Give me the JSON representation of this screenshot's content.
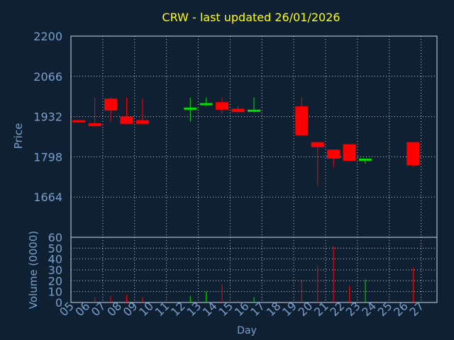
{
  "colors": {
    "background": "#102033",
    "title": "#ffff00",
    "axis_text": "#7aa0cc",
    "frame": "#cfd8e8",
    "grid": "#c8d0dc",
    "up": "#00e000",
    "down": "#ff0000"
  },
  "chart_data": [
    {
      "type": "candlestick",
      "title": "CRW - last updated 26/01/2026",
      "ylabel": "Price",
      "ylim": [
        1530,
        2200
      ],
      "yticks": [
        2200,
        2066,
        1932,
        1798,
        1664
      ],
      "grid": true,
      "candles": [
        {
          "day": "05",
          "open": 1920,
          "close": 1917,
          "high": 1920,
          "low": 1917
        },
        {
          "day": "06",
          "open": 1910,
          "close": 1900,
          "high": 1995,
          "low": 1898
        },
        {
          "day": "07",
          "open": 1992,
          "close": 1952,
          "high": 1996,
          "low": 1915
        },
        {
          "day": "08",
          "open": 1932,
          "close": 1908,
          "high": 1995,
          "low": 1908
        },
        {
          "day": "09",
          "open": 1920,
          "close": 1908,
          "high": 1992,
          "low": 1906
        },
        {
          "day": "12",
          "open": 1957,
          "close": 1962,
          "high": 1995,
          "low": 1915
        },
        {
          "day": "13",
          "open": 1972,
          "close": 1977,
          "high": 1995,
          "low": 1967
        },
        {
          "day": "14",
          "open": 1980,
          "close": 1955,
          "high": 1995,
          "low": 1942
        },
        {
          "day": "15",
          "open": 1958,
          "close": 1947,
          "high": 1968,
          "low": 1946
        },
        {
          "day": "16",
          "open": 1950,
          "close": 1955,
          "high": 1995,
          "low": 1946
        },
        {
          "day": "19",
          "open": 1966,
          "close": 1870,
          "high": 1995,
          "low": 1866
        },
        {
          "day": "20",
          "open": 1847,
          "close": 1830,
          "high": 1847,
          "low": 1700
        },
        {
          "day": "21",
          "open": 1822,
          "close": 1792,
          "high": 1822,
          "low": 1762
        },
        {
          "day": "22",
          "open": 1840,
          "close": 1785,
          "high": 1840,
          "low": 1783
        },
        {
          "day": "23",
          "open": 1787,
          "close": 1792,
          "high": 1792,
          "low": 1775
        },
        {
          "day": "26",
          "open": 1847,
          "close": 1770,
          "high": 1847,
          "low": 1765
        }
      ]
    },
    {
      "type": "bar",
      "ylabel": "Volume (0000)",
      "xlabel": "Day",
      "ylim": [
        0,
        60
      ],
      "yticks": [
        60,
        50,
        40,
        30,
        20,
        10,
        0
      ],
      "categories": [
        "05",
        "06",
        "07",
        "08",
        "09",
        "10",
        "11",
        "12",
        "13",
        "14",
        "15",
        "16",
        "17",
        "18",
        "19",
        "20",
        "21",
        "22",
        "23",
        "24",
        "25",
        "26",
        "27"
      ],
      "volumes": [
        {
          "day": "05",
          "value": 0
        },
        {
          "day": "06",
          "value": 5
        },
        {
          "day": "07",
          "value": 6
        },
        {
          "day": "08",
          "value": 7
        },
        {
          "day": "09",
          "value": 5
        },
        {
          "day": "12",
          "value": 6
        },
        {
          "day": "13",
          "value": 10
        },
        {
          "day": "14",
          "value": 17
        },
        {
          "day": "15",
          "value": 2
        },
        {
          "day": "16",
          "value": 5
        },
        {
          "day": "19",
          "value": 21
        },
        {
          "day": "20",
          "value": 34
        },
        {
          "day": "21",
          "value": 52
        },
        {
          "day": "22",
          "value": 15
        },
        {
          "day": "23",
          "value": 21
        },
        {
          "day": "26",
          "value": 32
        }
      ],
      "grid": true
    }
  ]
}
